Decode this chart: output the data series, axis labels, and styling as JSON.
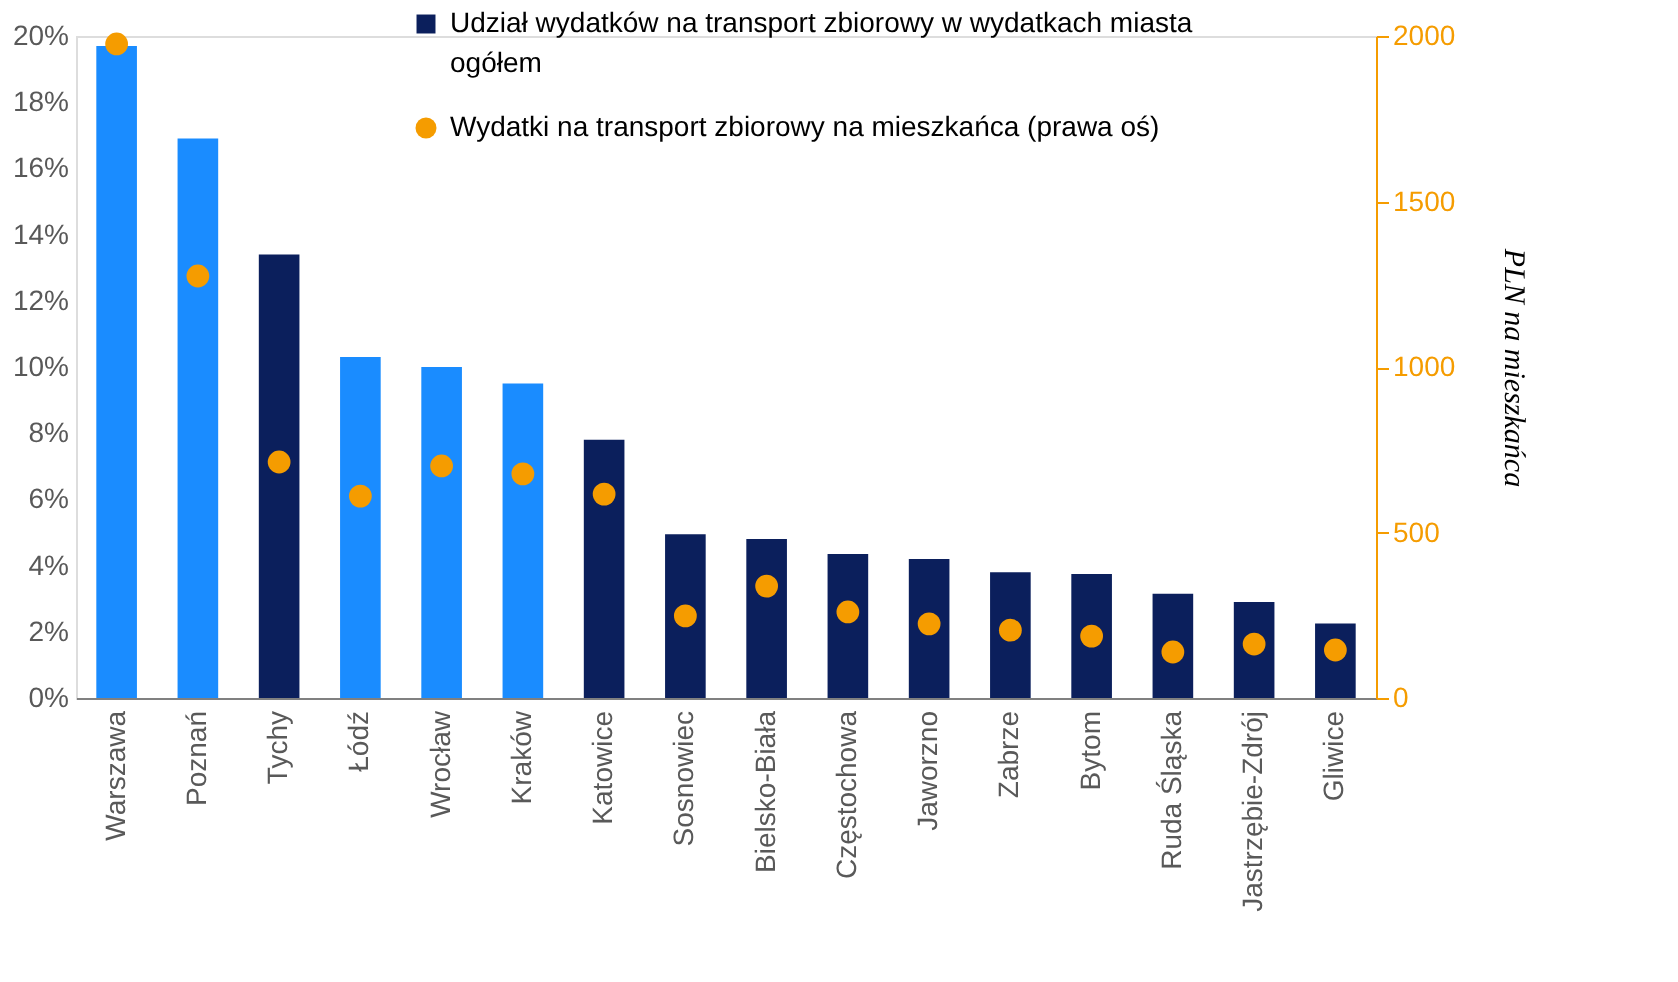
{
  "chart_data": {
    "type": "bar",
    "categories": [
      "Warszawa",
      "Poznań",
      "Tychy",
      "Łódź",
      "Wrocław",
      "Kraków",
      "Katowice",
      "Sosnowiec",
      "Bielsko-Biała",
      "Częstochowa",
      "Jaworzno",
      "Zabrze",
      "Bytom",
      "Ruda Śląska",
      "Jastrzębie-Zdrój",
      "Gliwice"
    ],
    "series": [
      {
        "name": "Udział wydatków na transport zbiorowy w wydatkach miasta ogółem",
        "color": "#0b1f5c",
        "colors": [
          "#1a8cff",
          "#1a8cff",
          "#0b1f5c",
          "#1a8cff",
          "#1a8cff",
          "#1a8cff",
          "#0b1f5c",
          "#0b1f5c",
          "#0b1f5c",
          "#0b1f5c",
          "#0b1f5c",
          "#0b1f5c",
          "#0b1f5c",
          "#0b1f5c",
          "#0b1f5c",
          "#0b1f5c"
        ],
        "values": [
          19.7,
          16.9,
          13.4,
          10.3,
          10.0,
          9.5,
          7.8,
          4.95,
          4.8,
          4.35,
          4.2,
          3.8,
          3.75,
          3.15,
          2.9,
          2.25
        ]
      },
      {
        "name": "Wydatki na transport zbiorowy na mieszkańca (prawa oś)",
        "type": "scatter",
        "axis": "y2",
        "color": "#f59c00",
        "values": [
          1976,
          1275,
          713,
          610,
          701,
          677,
          616,
          248,
          338,
          260,
          224,
          205,
          187,
          139,
          163,
          145
        ]
      }
    ],
    "ylim": [
      0,
      20
    ],
    "yticks": [
      {
        "value": 0,
        "label": "0%"
      },
      {
        "value": 2,
        "label": "2%"
      },
      {
        "value": 4,
        "label": "4%"
      },
      {
        "value": 6,
        "label": "6%"
      },
      {
        "value": 8,
        "label": "8%"
      },
      {
        "value": 10,
        "label": "10%"
      },
      {
        "value": 12,
        "label": "12%"
      },
      {
        "value": 14,
        "label": "14%"
      },
      {
        "value": 16,
        "label": "16%"
      },
      {
        "value": 18,
        "label": "18%"
      },
      {
        "value": 20,
        "label": "20%"
      }
    ],
    "y2lim": [
      0,
      2000
    ],
    "y2ticks": [
      0,
      500,
      1000,
      1500,
      2000
    ],
    "y2label": "PLN na mieszkańca",
    "marker": "circle",
    "grid": false,
    "legend": "top right"
  }
}
